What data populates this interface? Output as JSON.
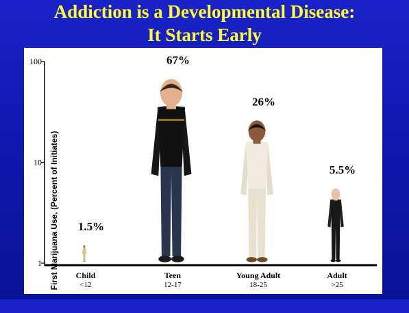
{
  "slide": {
    "title_line1": "Addiction is a Developmental Disease:",
    "title_line2": "It Starts Early",
    "title_color": "#ffff33",
    "background_color": "#1a23c8"
  },
  "chart_data": {
    "type": "bar",
    "title": "Addiction is a Developmental Disease: It Starts Early",
    "ylabel": "First Marijuana Use, (Percent of Initiates)",
    "xlabel": "",
    "yscale": "log",
    "ylim": [
      1,
      100
    ],
    "yticks": [
      "1",
      "10",
      "100"
    ],
    "grid": false,
    "legend": "none",
    "bar_style": "people-figures",
    "categories": [
      {
        "label": "Child",
        "sublabel": "<12",
        "value": 1.5,
        "value_label": "1.5%",
        "figure": "child-figure"
      },
      {
        "label": "Teen",
        "sublabel": "12-17",
        "value": 67,
        "value_label": "67%",
        "figure": "teen-figure"
      },
      {
        "label": "Young Adult",
        "sublabel": "18-25",
        "value": 26,
        "value_label": "26%",
        "figure": "young-adult-figure"
      },
      {
        "label": "Adult",
        "sublabel": ">25",
        "value": 5.5,
        "value_label": "5.5%",
        "figure": "adult-figure"
      }
    ]
  }
}
